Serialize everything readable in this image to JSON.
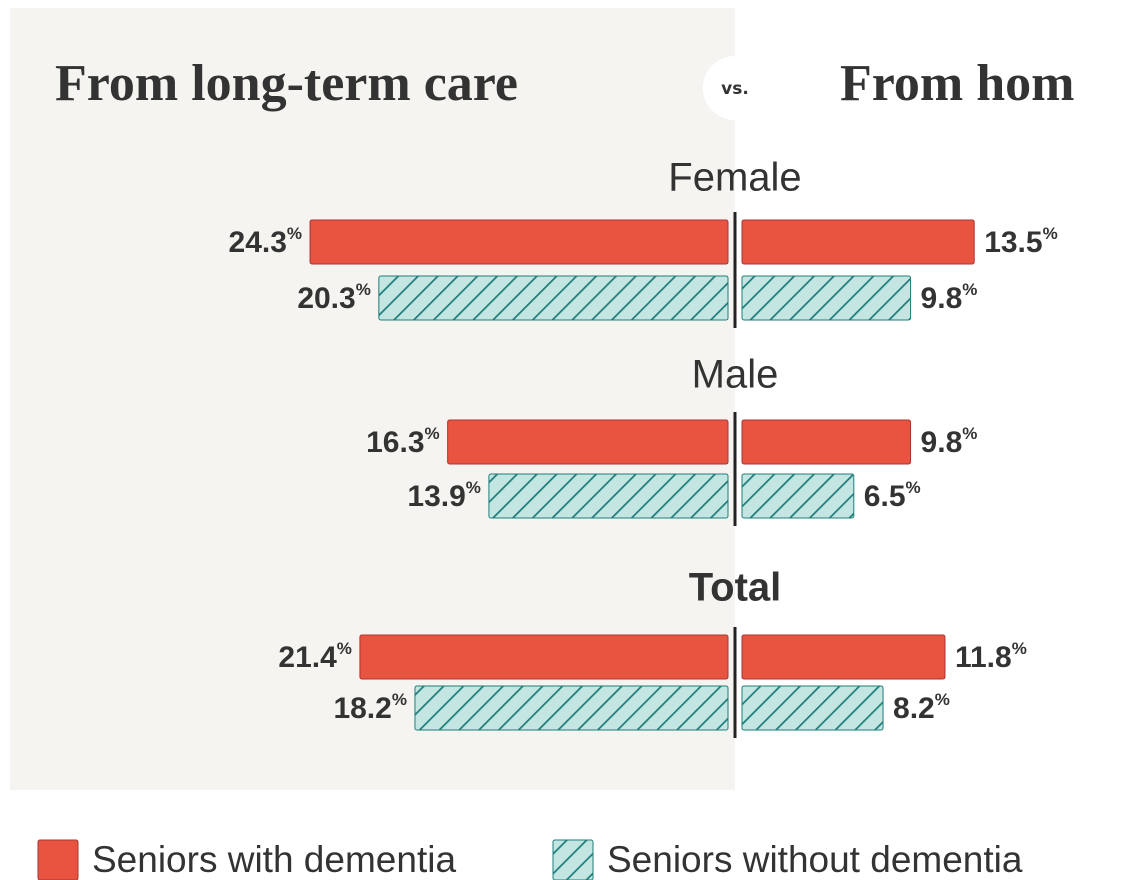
{
  "chart_data": {
    "type": "butterfly-bar",
    "left_title": "From long-term care",
    "right_title": "From hom",
    "vs": "vs.",
    "categories": [
      "Female",
      "Male",
      "Total"
    ],
    "xlim": [
      0,
      25
    ],
    "series": [
      {
        "name": "Seniors with dementia",
        "color": "#e8543f",
        "hatch": null,
        "values": [
          24.3,
          16.3,
          21.4
        ],
        "value_labels": [
          "24.3%",
          "16.3%",
          "21.4%"
        ],
        "right_values": [
          13.5,
          9.8,
          11.8
        ],
        "right_value_labels": [
          "13.5%",
          "9.8%",
          "11.8%"
        ]
      },
      {
        "name": "Seniors without dementia",
        "color": "#c4e6e2",
        "hatch": "#1f7d7a",
        "values": [
          20.3,
          13.9,
          18.2
        ],
        "value_labels": [
          "20.3%",
          "13.9%",
          "18.2%"
        ],
        "right_values": [
          9.8,
          6.5,
          8.2
        ],
        "right_value_labels": [
          "9.8%",
          "6.5%",
          "8.2%"
        ]
      }
    ]
  }
}
